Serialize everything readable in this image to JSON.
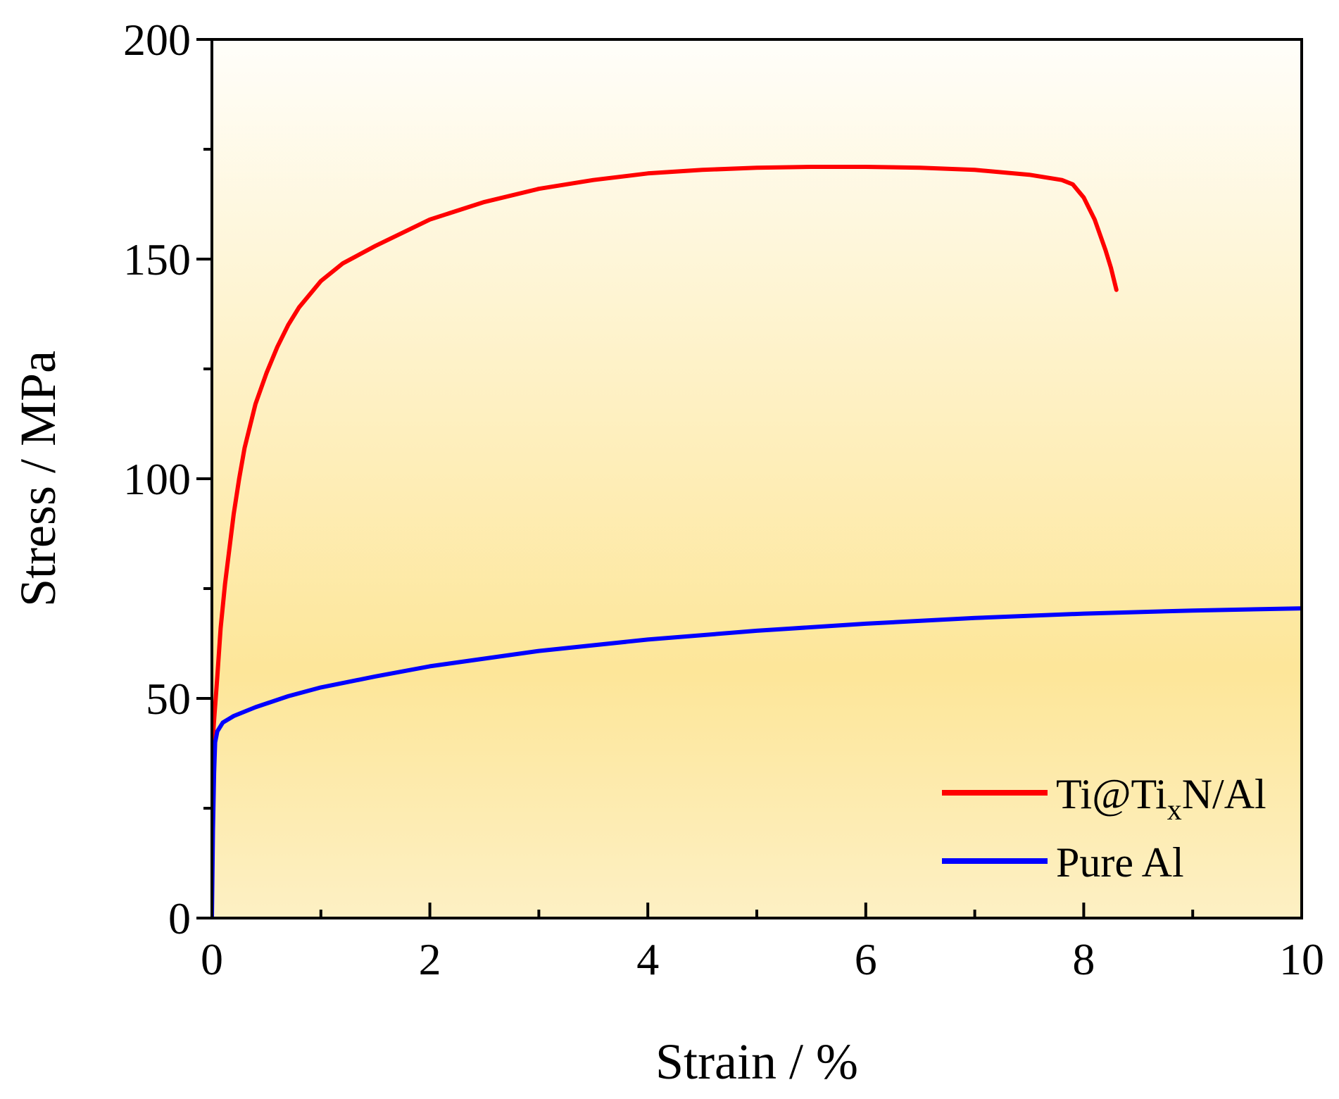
{
  "chart_data": {
    "type": "line",
    "title": "",
    "xlabel": "Strain / %",
    "ylabel": "Stress / MPa",
    "xlim": [
      0,
      10
    ],
    "ylim": [
      0,
      200
    ],
    "x_ticks": [
      0,
      2,
      4,
      6,
      8,
      10
    ],
    "x_tick_labels": [
      "0",
      "2",
      "4",
      "6",
      "8",
      "10"
    ],
    "y_ticks": [
      0,
      50,
      100,
      150,
      200
    ],
    "y_tick_labels": [
      "0",
      "50",
      "100",
      "150",
      "200"
    ],
    "x_minor_ticks": [
      1,
      3,
      5,
      7,
      9
    ],
    "y_minor_ticks": [
      25,
      75,
      125,
      175
    ],
    "grid": false,
    "legend_position": "bottom-right",
    "background_gradient": [
      "#fffefa",
      "#fde699",
      "#fdf0c4"
    ],
    "series": [
      {
        "name": "Ti@Ti",
        "name_subscript": "x",
        "name_suffix": "N/Al",
        "color": "#ff0000",
        "x": [
          0,
          0.02,
          0.05,
          0.08,
          0.12,
          0.16,
          0.2,
          0.25,
          0.3,
          0.4,
          0.5,
          0.6,
          0.7,
          0.8,
          1.0,
          1.2,
          1.5,
          2.0,
          2.5,
          3.0,
          3.5,
          4.0,
          4.5,
          5.0,
          5.5,
          6.0,
          6.5,
          7.0,
          7.5,
          7.8,
          7.9,
          8.0,
          8.1,
          8.2,
          8.25,
          8.3
        ],
        "y": [
          38,
          45,
          55,
          66,
          76,
          84,
          92,
          100,
          107,
          117,
          124,
          130,
          135,
          139,
          145,
          149,
          153,
          159,
          163,
          166,
          168,
          169.5,
          170.3,
          170.8,
          171,
          171,
          170.8,
          170.3,
          169.2,
          168,
          167,
          164,
          159,
          152,
          148,
          143
        ]
      },
      {
        "name": "Pure Al",
        "color": "#0000ff",
        "x": [
          0,
          0.01,
          0.02,
          0.03,
          0.05,
          0.1,
          0.2,
          0.4,
          0.7,
          1.0,
          1.5,
          2.0,
          3.0,
          4.0,
          5.0,
          6.0,
          7.0,
          8.0,
          9.0,
          10.0
        ],
        "y": [
          0,
          20,
          33,
          40,
          42.5,
          44.5,
          46,
          48,
          50.5,
          52.5,
          55,
          57.3,
          60.8,
          63.4,
          65.4,
          67,
          68.3,
          69.3,
          70,
          70.5
        ]
      }
    ]
  }
}
